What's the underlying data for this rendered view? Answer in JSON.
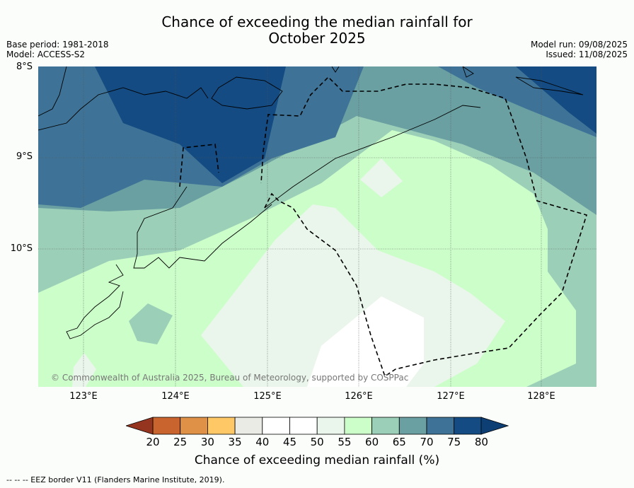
{
  "title_line1": "Chance of exceeding the median rainfall for",
  "title_line2": "October 2025",
  "base_period": "Base period: 1981-2018",
  "model": "Model: ACCESS-S2",
  "model_run": "Model run: 09/08/2025",
  "issued": "Issued: 11/08/2025",
  "lat_labels": [
    "8°S",
    "9°S",
    "10°S"
  ],
  "lon_labels": [
    "123°E",
    "124°E",
    "125°E",
    "126°E",
    "127°E",
    "128°E"
  ],
  "copyright": "© Commonwealth of Australia 2025, Bureau of Meteorology, supported by COSPPac",
  "colorbar": {
    "label": "Chance of exceeding median rainfall (%)",
    "ticks": [
      "20",
      "25",
      "30",
      "35",
      "40",
      "45",
      "50",
      "55",
      "60",
      "65",
      "70",
      "75",
      "80"
    ],
    "colors": [
      "#b0492b",
      "#c9642f",
      "#df9247",
      "#fec867",
      "#ebebe6",
      "#ffffff",
      "#ffffff",
      "#eaf6eb",
      "#ccfec9",
      "#9ccfb8",
      "#6aa0a2",
      "#3e7397",
      "#134b82"
    ],
    "under_color": "#95351f",
    "over_color": "#0e3f74"
  },
  "legend_footer": "-- -- -- EEZ border V11 (Flanders Marine Institute, 2019)."
}
